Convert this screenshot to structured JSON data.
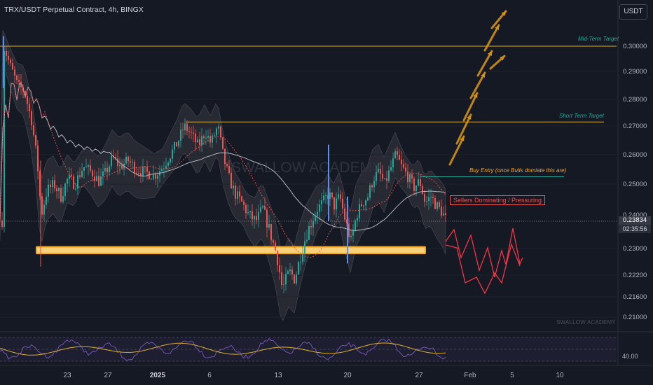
{
  "header": {
    "symbol_title": "TRX/USDT Perpetual Contract, 4h, BINGX",
    "currency_button": "USDT"
  },
  "annotations": {
    "mid_term_target": "Mid-Term Target",
    "short_term_target": "Short Term Target",
    "buy_entry": "Buy Entry (once Bulls domiate this are)",
    "sellers": "Sellers Dominating / Pressuring",
    "watermark_bottom": "SWALLOW ACADEMY",
    "watermark_center": "SWALLOW ACADEMY"
  },
  "price_scale": {
    "current_price": "0.23834",
    "countdown": "02:35:56",
    "hidden_label": "0.24000"
  },
  "rsi_panel": {
    "level_label": "40.00"
  },
  "colors": {
    "background": "#151924",
    "up": "#26a69a",
    "down": "#ef5350",
    "target_line": "#e0b12a",
    "support_zone": "#f5a623",
    "projection_up": "#d4920f",
    "projection_down": "#f23645",
    "rsi_line": "#7e57c2",
    "rsi_ma": "#e0b12a"
  },
  "chart_data": {
    "type": "candlestick",
    "title": "TRX/USDT Perpetual Contract, 4h, BINGX",
    "y_axis": {
      "ticks": [
        "0.30000",
        "0.29000",
        "0.28000",
        "0.27000",
        "0.26000",
        "0.25000",
        "0.23000",
        "0.22200",
        "0.21600",
        "0.21000"
      ],
      "range": [
        0.205,
        0.31
      ]
    },
    "x_axis": {
      "ticks": [
        "23",
        "27",
        "2025",
        "6",
        "13",
        "20",
        "27",
        "Feb",
        "5",
        "10"
      ]
    },
    "horizontal_levels": [
      {
        "name": "Mid-Term Target",
        "price": 0.3
      },
      {
        "name": "Short Term Target",
        "price": 0.2715
      },
      {
        "name": "Buy Entry",
        "price": 0.2525
      }
    ],
    "support_zone": {
      "low": 0.2285,
      "high": 0.2305
    },
    "rsi_level": 40.0
  }
}
